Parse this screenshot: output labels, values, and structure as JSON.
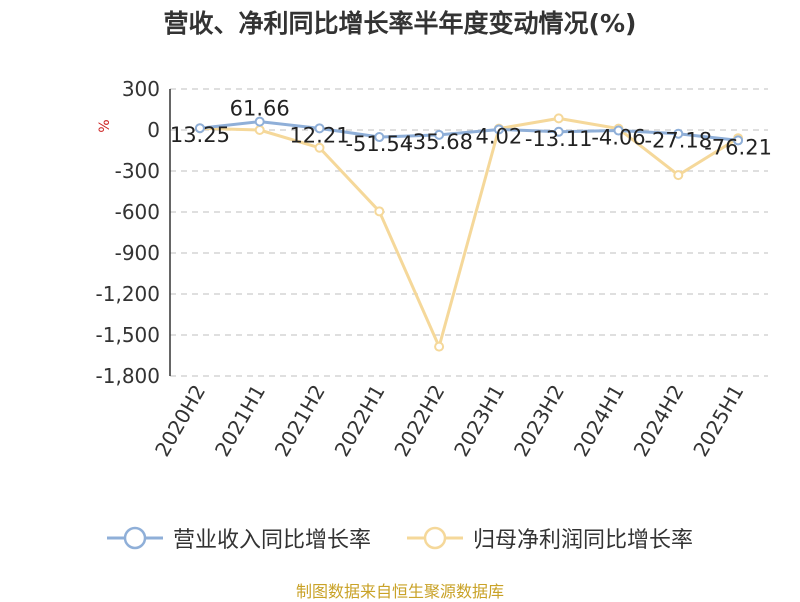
{
  "chart_data": {
    "type": "line",
    "title": "营收、净利同比增长率半年度变动情况(%)",
    "ylabel": "%",
    "categories": [
      "2020H2",
      "2021H1",
      "2021H2",
      "2022H1",
      "2022H2",
      "2023H1",
      "2023H2",
      "2024H1",
      "2024H2",
      "2025H1"
    ],
    "ylim": [
      -1800,
      300
    ],
    "yticks": [
      300,
      0,
      -300,
      -600,
      -900,
      -1200,
      -1500,
      -1800
    ],
    "ytick_labels": [
      "300",
      "0",
      "-300",
      "-600",
      "-900",
      "-1,200",
      "-1,500",
      "-1,800"
    ],
    "grid": true,
    "legend_position": "bottom",
    "series": [
      {
        "name": "营业收入同比增长率",
        "color": "#8fafd8",
        "values": [
          13.25,
          61.66,
          12.21,
          -51.54,
          -35.68,
          4.02,
          -13.11,
          -4.06,
          -27.18,
          -76.21
        ],
        "labels": [
          "13.25",
          "61.66",
          "12.21",
          "-51.54",
          "-35.68",
          "4.02",
          "-13.11",
          "-4.06",
          "-27.18",
          "-76.21"
        ]
      },
      {
        "name": "归母净利润同比增长率",
        "color": "#f5d89a",
        "values": [
          13,
          0,
          -130,
          -595,
          -1585,
          10,
          85,
          10,
          -330,
          -60
        ],
        "labels": []
      }
    ]
  },
  "source": "制图数据来自恒生聚源数据库"
}
